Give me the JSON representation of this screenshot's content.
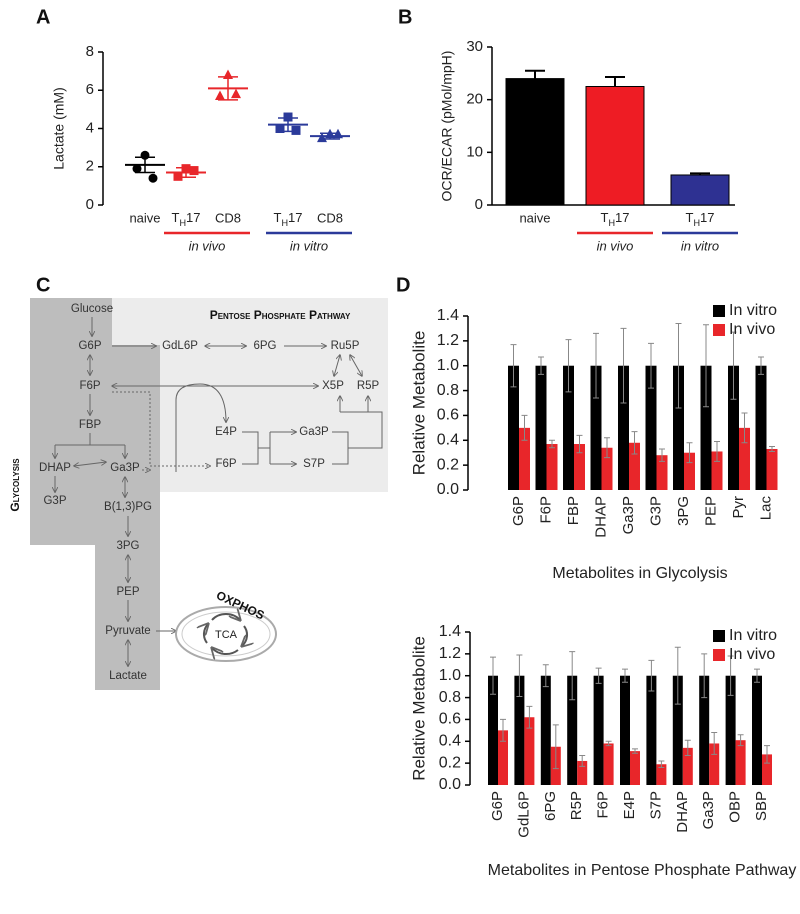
{
  "panel_labels": [
    "A",
    "B",
    "C",
    "D"
  ],
  "chart_data": [
    {
      "type": "strip",
      "y_label": "Lactate (mM)",
      "categories": [
        "naive",
        "TH17",
        "CD8",
        "TH17",
        "CD8"
      ],
      "points": [
        [
          2.6,
          1.9,
          1.4
        ],
        [
          1.9,
          1.5,
          1.8
        ],
        [
          6.8,
          5.7,
          5.8
        ],
        [
          4.6,
          4.0,
          3.9
        ],
        [
          3.7,
          3.5,
          3.7
        ]
      ],
      "means": [
        2.1,
        1.7,
        6.1,
        4.2,
        3.6
      ],
      "errors": [
        0.4,
        0.25,
        0.6,
        0.35,
        0.15
      ],
      "colors": [
        "#000000",
        "#e8262a",
        "#e8262a",
        "#2b3a9a",
        "#2b3a9a"
      ],
      "markers": [
        "circle",
        "square",
        "triangle",
        "square",
        "triangle"
      ],
      "groups": [
        {
          "label": "in vivo",
          "color": "#e8262a",
          "categories": [
            1,
            2
          ]
        },
        {
          "label": "in vitro",
          "color": "#2b3a9a",
          "categories": [
            3,
            4
          ]
        }
      ],
      "ylim": [
        0,
        8
      ],
      "yticks": [
        0,
        2,
        4,
        6,
        8
      ]
    },
    {
      "type": "bar",
      "y_label": "OCR/ECAR (pMol/mpH)",
      "categories": [
        "naive",
        "TH17",
        "TH17"
      ],
      "values": [
        24,
        22.5,
        5.7
      ],
      "errors": [
        1.5,
        1.8,
        0.3
      ],
      "colors": [
        "#000000",
        "#ee1c24",
        "#2e3192"
      ],
      "groups": [
        {
          "label": "in vivo",
          "color": "#e8262a",
          "categories": [
            1
          ]
        },
        {
          "label": "in vitro",
          "color": "#2b3a9a",
          "categories": [
            2
          ]
        }
      ],
      "ylim": [
        0,
        30
      ],
      "yticks": [
        0,
        10,
        20,
        30
      ]
    },
    {
      "type": "bar",
      "y_label": "Relative Metabolite",
      "x_label": "Metabolites in Glycolysis",
      "categories": [
        "G6P",
        "F6P",
        "FBP",
        "DHAP",
        "Ga3P",
        "G3P",
        "3PG",
        "PEP",
        "Pyr",
        "Lac"
      ],
      "series": [
        {
          "name": "In vitro",
          "color": "#000000",
          "values": [
            1,
            1,
            1,
            1,
            1,
            1,
            1,
            1,
            1,
            1
          ],
          "errors": [
            0.17,
            0.07,
            0.21,
            0.26,
            0.3,
            0.18,
            0.34,
            0.33,
            0.27,
            0.07
          ]
        },
        {
          "name": "In vivo",
          "color": "#e8262a",
          "values": [
            0.5,
            0.37,
            0.37,
            0.34,
            0.38,
            0.28,
            0.3,
            0.31,
            0.5,
            0.33
          ],
          "errors": [
            0.1,
            0.03,
            0.07,
            0.08,
            0.09,
            0.05,
            0.08,
            0.08,
            0.12,
            0.02
          ]
        }
      ],
      "ylim": [
        0,
        1.4
      ],
      "yticks": [
        {
          "value": 0,
          "label": "0.0"
        },
        0.2,
        0.4,
        0.6,
        0.8,
        {
          "value": 1,
          "label": "1.0"
        },
        1.2,
        1.4
      ],
      "legend": "top-right"
    },
    {
      "type": "bar",
      "y_label": "Relative Metabolite",
      "x_label": "Metabolites in Pentose Phosphate Pathway",
      "categories": [
        "G6P",
        "GdL6P",
        "6PG",
        "R5P",
        "F6P",
        "E4P",
        "S7P",
        "DHAP",
        "Ga3P",
        "OBP",
        "SBP"
      ],
      "series": [
        {
          "name": "In vitro",
          "color": "#000000",
          "values": [
            1,
            1,
            1,
            1,
            1,
            1,
            1,
            1,
            1,
            1,
            1
          ],
          "errors": [
            0.17,
            0.19,
            0.1,
            0.22,
            0.07,
            0.06,
            0.14,
            0.26,
            0.2,
            0.18,
            0.06
          ]
        },
        {
          "name": "In vivo",
          "color": "#e8262a",
          "values": [
            0.5,
            0.62,
            0.35,
            0.22,
            0.38,
            0.31,
            0.19,
            0.34,
            0.38,
            0.41,
            0.28
          ],
          "errors": [
            0.1,
            0.1,
            0.2,
            0.05,
            0.02,
            0.02,
            0.03,
            0.07,
            0.1,
            0.05,
            0.08
          ]
        }
      ],
      "ylim": [
        0,
        1.4
      ],
      "yticks": [
        {
          "value": 0,
          "label": "0.0"
        },
        0.2,
        0.4,
        0.6,
        0.8,
        {
          "value": 1,
          "label": "1.0"
        },
        1.2,
        1.4
      ],
      "legend": "top-right"
    }
  ],
  "diagram": {
    "pathway_title": "Pentose Phosphate Pathway",
    "side_label": "Glycolysis",
    "organelle": "OXPHOS",
    "cycle": "TCA",
    "nodes": [
      "Glucose",
      "G6P",
      "GdL6P",
      "6PG",
      "Ru5P",
      "F6P",
      "X5P",
      "R5P",
      "FBP",
      "E4P",
      "Ga3P",
      "DHAP",
      "Ga3P",
      "F6P",
      "S7P",
      "G3P",
      "B(1,3)PG",
      "3PG",
      "PEP",
      "Pyruvate",
      "Lactate"
    ]
  }
}
